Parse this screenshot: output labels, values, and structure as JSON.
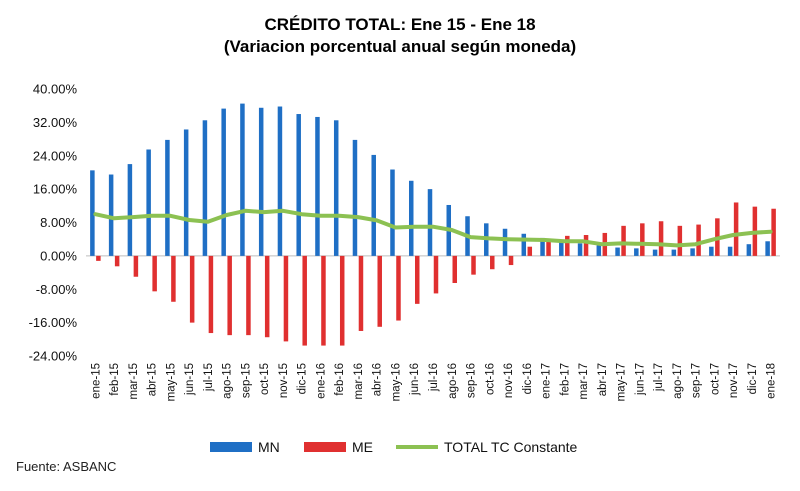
{
  "chart_data": {
    "type": "bar",
    "title": "CRÉDITO TOTAL: Ene 15 - Ene 18",
    "subtitle": "(Variacion porcentual anual según moneda)",
    "categories": [
      "ene-15",
      "feb-15",
      "mar-15",
      "abr-15",
      "may-15",
      "jun-15",
      "jul-15",
      "ago-15",
      "sep-15",
      "oct-15",
      "nov-15",
      "dic-15",
      "ene-16",
      "feb-16",
      "mar-16",
      "abr-16",
      "may-16",
      "jun-16",
      "jul-16",
      "ago-16",
      "sep-16",
      "oct-16",
      "nov-16",
      "dic-16",
      "ene-17",
      "feb-17",
      "mar-17",
      "abr-17",
      "may-17",
      "jun-17",
      "jul-17",
      "ago-17",
      "sep-17",
      "oct-17",
      "nov-17",
      "dic-17",
      "ene-18"
    ],
    "series": [
      {
        "name": "MN",
        "kind": "bar",
        "color": "#1f6fc5",
        "values": [
          20.5,
          19.5,
          22,
          25.5,
          27.8,
          30.3,
          32.5,
          35.3,
          36.5,
          35.5,
          35.8,
          34,
          33.3,
          32.5,
          27.8,
          24.2,
          20.7,
          18,
          16,
          12.2,
          9.5,
          7.8,
          6.5,
          5.3,
          4.3,
          3.5,
          3,
          2.5,
          2,
          1.8,
          1.5,
          1.5,
          1.8,
          2.2,
          2.2,
          2.8,
          3.5
        ]
      },
      {
        "name": "ME",
        "kind": "bar",
        "color": "#e03030",
        "values": [
          -1.2,
          -2.5,
          -5,
          -8.5,
          -11,
          -16,
          -18.5,
          -19,
          -19,
          -19.5,
          -20.5,
          -21.5,
          -21.5,
          -21.5,
          -18,
          -17,
          -15.5,
          -11.5,
          -9,
          -6.5,
          -4.5,
          -3.2,
          -2.2,
          2.2,
          3.5,
          4.8,
          5,
          5.5,
          7.2,
          7.8,
          8.3,
          7.2,
          7.5,
          9,
          12.8,
          11.8,
          11.3
        ]
      },
      {
        "name": "TOTAL TC Constante",
        "kind": "line",
        "color": "#8cc152",
        "values": [
          10,
          9,
          9.3,
          9.6,
          9.6,
          8.6,
          8.2,
          9.8,
          10.8,
          10.5,
          10.8,
          10,
          9.6,
          9.6,
          9.3,
          8.5,
          6.8,
          7,
          7,
          6.2,
          4.5,
          4.2,
          4,
          3.9,
          3.8,
          3.5,
          3.5,
          2.8,
          3,
          2.9,
          2.8,
          2.5,
          2.8,
          4,
          5,
          5.5,
          5.8
        ]
      }
    ],
    "yticks": [
      "40.00%",
      "32.00%",
      "24.00%",
      "16.00%",
      "8.00%",
      "0.00%",
      "-8.00%",
      "-16.00%",
      "-24.00%"
    ],
    "ylim": [
      -24,
      40
    ],
    "grid": false,
    "legend": "bottom",
    "xlabel": "",
    "ylabel": ""
  },
  "source": "Fuente: ASBANC"
}
